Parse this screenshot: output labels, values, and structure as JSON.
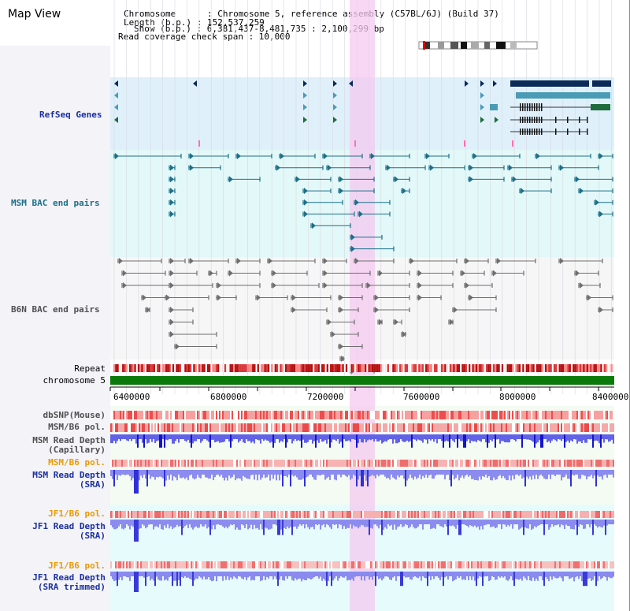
{
  "header": {
    "title": "Map View",
    "info_lines": [
      "Chromosome      : Chromosome 5, reference assembly (C57BL/6J) (Build 37)",
      "Length (b.p.) : 152,537,259",
      "Show (b.p.) : 6,381,437-8,481,735 : 2,100,299 bp",
      "Read coverage check span : 10,000"
    ]
  },
  "tracks": {
    "refseq_label": "RefSeq Genes",
    "msm_bac_label": "MSM BAC end pairs",
    "b6n_bac_label": "B6N BAC end pairs",
    "repeat_label": "Repeat",
    "chromosome_label": "chromosome 5",
    "dbsnp_label": "dbSNP(Mouse)",
    "msm_b6_pol_label": "MSM/B6 pol.",
    "msm_depth_cap_label": "MSM Read Depth",
    "msm_depth_cap_sub": "(Capillary)",
    "msm_b6_pol2_label": "MSM/B6 pol.",
    "msm_depth_sra_label": "MSM Read Depth",
    "msm_depth_sra_sub": "(SRA)",
    "jf1_b6_pol_label": "JF1/B6 pol.",
    "jf1_depth_sra_label": "JF1 Read Depth",
    "jf1_depth_sra_sub": "(SRA)",
    "jf1_b6_pol2_label": "JF1/B6 pol.",
    "jf1_depth_trim_label": "JF1 Read Depth",
    "jf1_depth_trim_sub": "(SRA trimmed)"
  },
  "axis": {
    "ticks": [
      "6400000",
      "6800000",
      "7200000",
      "7600000",
      "8000000",
      "8400000"
    ]
  },
  "colors": {
    "refseq_bg": "#dff0fb",
    "msm_bg": "#e3f8f8",
    "highlight": "#f4c9f0",
    "refseq_dark": "#0b2a57",
    "refseq_teal": "#4a9bb5",
    "refseq_green": "#1f6b3c",
    "msm_feature": "#1c6f88",
    "b6n_feature": "#6e6e6e",
    "repeat_red": "#d63a3a",
    "chromosome_green": "#0b7a0b",
    "depth_blue": "#2b2bd6",
    "pol_red": "#f07070"
  }
}
